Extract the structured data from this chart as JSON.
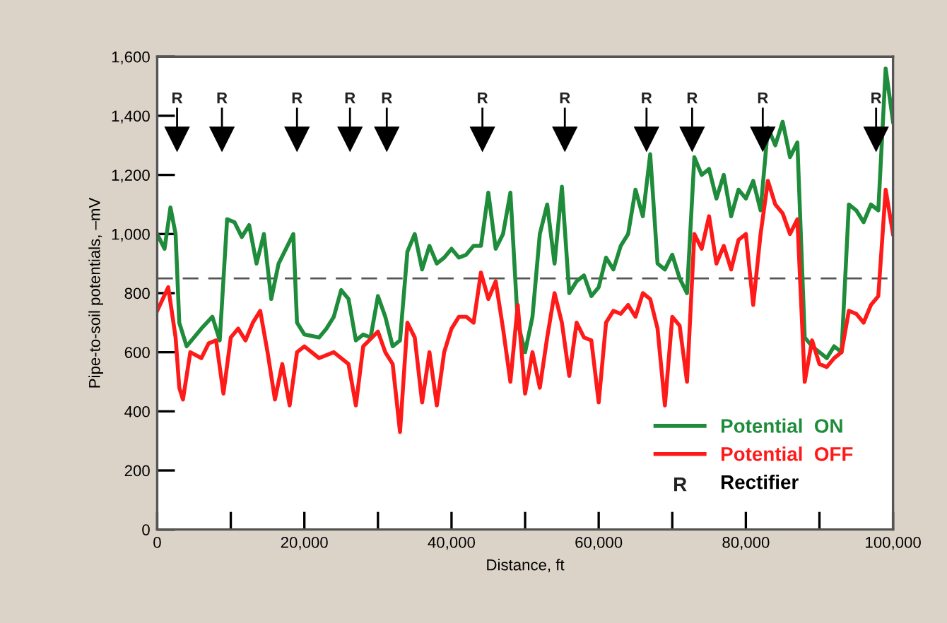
{
  "chart_data": {
    "type": "line",
    "xlabel": "Distance, ft",
    "ylabel": "Pipe-to-soil potentials, –mV",
    "xlim": [
      0,
      100000
    ],
    "ylim": [
      0,
      1600
    ],
    "xticks": [
      {
        "value": 0,
        "label": "0"
      },
      {
        "value": 10000,
        "label": null
      },
      {
        "value": 20000,
        "label": "20,000"
      },
      {
        "value": 30000,
        "label": null
      },
      {
        "value": 40000,
        "label": "40,000"
      },
      {
        "value": 50000,
        "label": null
      },
      {
        "value": 60000,
        "label": "60,000"
      },
      {
        "value": 70000,
        "label": null
      },
      {
        "value": 80000,
        "label": "80,000"
      },
      {
        "value": 90000,
        "label": null
      },
      {
        "value": 100000,
        "label": "100,000"
      }
    ],
    "yticks": [
      0,
      200,
      400,
      600,
      800,
      {
        "value": 1000,
        "label": "1,000"
      },
      {
        "value": 1200,
        "label": "1,200"
      },
      {
        "value": 1400,
        "label": "1,400"
      },
      {
        "value": 1600,
        "label": "1,600"
      }
    ],
    "grid": false,
    "legend": "bottom right",
    "marker": "none",
    "line_style": "solid",
    "series": [
      {
        "name": "Potential  ON",
        "color": "#1e8c3a",
        "x": [
          0,
          1000,
          1800,
          2500,
          3000,
          4000,
          6000,
          7500,
          8500,
          9500,
          10500,
          11500,
          12500,
          13500,
          14500,
          15500,
          16500,
          17500,
          18500,
          19000,
          20000,
          22000,
          23000,
          24000,
          25000,
          26000,
          27000,
          28000,
          29000,
          30000,
          31000,
          32000,
          33000,
          34000,
          35000,
          36000,
          37000,
          38000,
          39000,
          40000,
          41000,
          42000,
          43000,
          44000,
          45000,
          46000,
          47000,
          48000,
          49000,
          50000,
          51000,
          52000,
          53000,
          54000,
          55000,
          56000,
          57000,
          58000,
          59000,
          60000,
          61000,
          62000,
          63000,
          64000,
          65000,
          66000,
          67000,
          68000,
          69000,
          70000,
          71000,
          72000,
          73000,
          74000,
          75000,
          76000,
          77000,
          78000,
          79000,
          80000,
          81000,
          82000,
          83000,
          84000,
          85000,
          86000,
          87000,
          88000,
          89000,
          90000,
          91000,
          92000,
          93000,
          94000,
          95000,
          96000,
          97000,
          98000,
          99000,
          100000
        ],
        "values": [
          1000,
          950,
          1090,
          1000,
          700,
          620,
          680,
          720,
          640,
          1050,
          1040,
          990,
          1030,
          900,
          1000,
          780,
          900,
          950,
          1000,
          700,
          660,
          650,
          680,
          720,
          810,
          780,
          640,
          660,
          650,
          790,
          720,
          620,
          640,
          940,
          1000,
          880,
          960,
          900,
          920,
          950,
          920,
          930,
          960,
          960,
          1140,
          950,
          1000,
          1140,
          700,
          600,
          720,
          1000,
          1100,
          900,
          1160,
          800,
          840,
          860,
          790,
          820,
          920,
          880,
          960,
          1000,
          1150,
          1060,
          1270,
          900,
          880,
          930,
          850,
          800,
          1260,
          1200,
          1220,
          1120,
          1200,
          1060,
          1150,
          1120,
          1180,
          1080,
          1360,
          1300,
          1380,
          1260,
          1310,
          650,
          620,
          600,
          580,
          620,
          600,
          1100,
          1080,
          1040,
          1100,
          1080,
          1560,
          1380
        ]
      },
      {
        "name": "Potential  OFF",
        "color": "#ff1a1a",
        "x": [
          0,
          1500,
          2500,
          3000,
          3500,
          4500,
          6000,
          7000,
          8000,
          9000,
          10000,
          11000,
          12000,
          13000,
          14000,
          15000,
          16000,
          17000,
          18000,
          19000,
          20000,
          22000,
          24000,
          26000,
          27000,
          28000,
          30000,
          31000,
          32000,
          33000,
          34000,
          35000,
          36000,
          37000,
          38000,
          39000,
          40000,
          41000,
          42000,
          43000,
          44000,
          45000,
          46000,
          47000,
          48000,
          49000,
          50000,
          51000,
          52000,
          53000,
          54000,
          55000,
          56000,
          57000,
          58000,
          59000,
          60000,
          61000,
          62000,
          63000,
          64000,
          65000,
          66000,
          67000,
          68000,
          69000,
          70000,
          71000,
          72000,
          73000,
          74000,
          75000,
          76000,
          77000,
          78000,
          79000,
          80000,
          81000,
          82000,
          83000,
          84000,
          85000,
          86000,
          87000,
          88000,
          89000,
          90000,
          91000,
          92000,
          93000,
          94000,
          95000,
          96000,
          97000,
          98000,
          99000,
          100000
        ],
        "values": [
          740,
          820,
          650,
          480,
          440,
          600,
          580,
          630,
          640,
          460,
          650,
          680,
          640,
          700,
          740,
          600,
          440,
          560,
          420,
          600,
          620,
          580,
          600,
          560,
          420,
          620,
          670,
          600,
          560,
          330,
          700,
          650,
          430,
          600,
          420,
          600,
          680,
          720,
          720,
          700,
          870,
          780,
          840,
          680,
          500,
          760,
          460,
          600,
          480,
          650,
          800,
          700,
          520,
          700,
          650,
          640,
          430,
          700,
          740,
          730,
          760,
          720,
          800,
          780,
          680,
          420,
          720,
          690,
          500,
          1000,
          950,
          1060,
          900,
          960,
          880,
          980,
          1000,
          760,
          1000,
          1180,
          1100,
          1070,
          1000,
          1050,
          500,
          640,
          560,
          550,
          580,
          600,
          740,
          730,
          700,
          760,
          790,
          1150,
          1000
        ]
      },
      {
        "name": "Rectifier",
        "type": "scatter",
        "color": "#000000",
        "marker": "triangle",
        "value_labels": [
          "R",
          "R",
          "R",
          "R",
          "R",
          "R",
          "R",
          "R",
          "R",
          "R",
          "R"
        ],
        "x": [
          2700,
          8800,
          19000,
          26200,
          31200,
          44200,
          55400,
          66500,
          72700,
          82300,
          97700
        ],
        "values": [
          1320,
          1320,
          1320,
          1320,
          1320,
          1320,
          1320,
          1320,
          1320,
          1320,
          1320
        ]
      }
    ],
    "ref_lines": [
      {
        "axis": "y",
        "value": 850,
        "color": "#555555",
        "line_style": "dashed"
      }
    ]
  }
}
